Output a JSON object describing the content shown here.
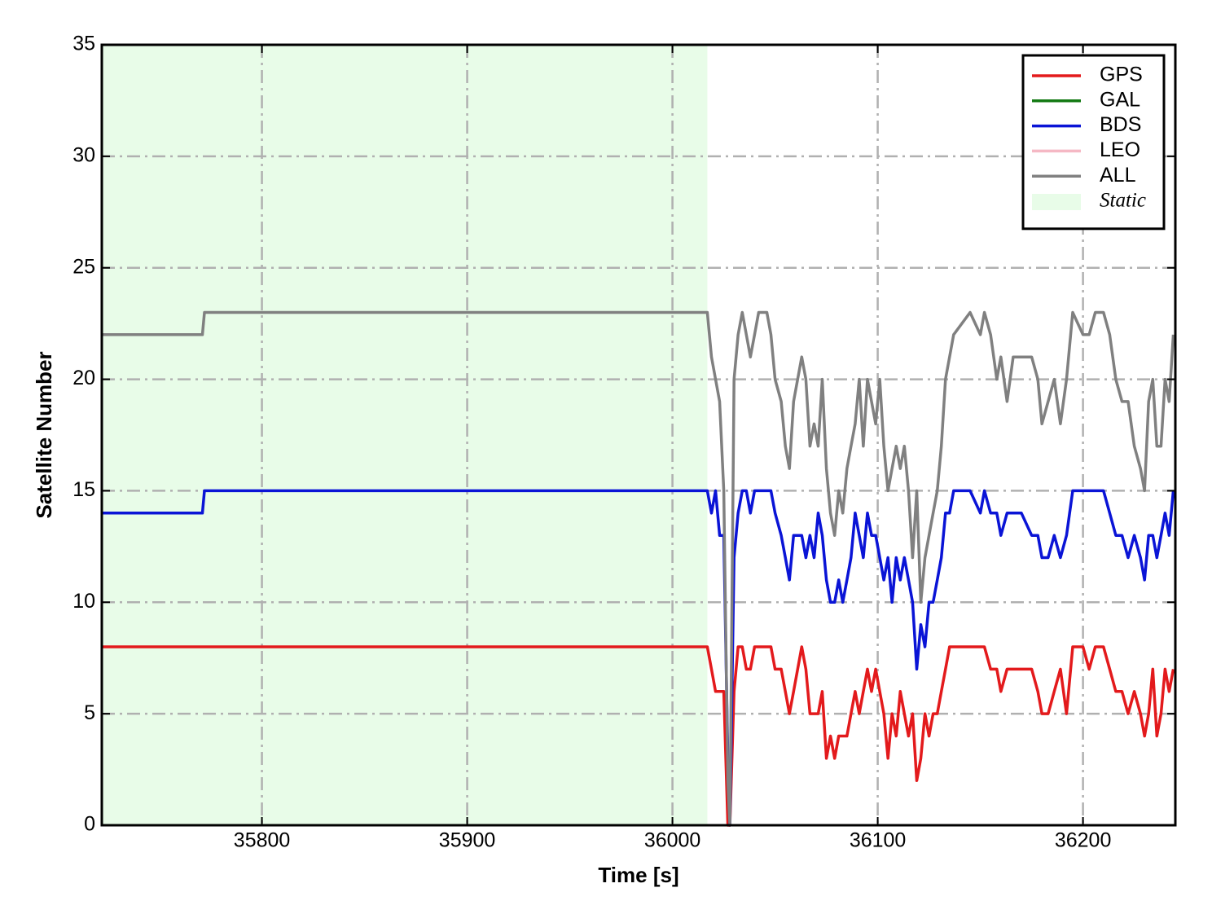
{
  "chart_data": {
    "type": "line",
    "x_label": "Time [s]",
    "y_label": "Satellite Number",
    "xlim": [
      35722,
      36245
    ],
    "ylim": [
      0,
      35
    ],
    "xticks": [
      35800,
      35900,
      36000,
      36100,
      36200
    ],
    "yticks": [
      0,
      5,
      10,
      15,
      20,
      25,
      30,
      35
    ],
    "grid": true,
    "legend": "upper-right",
    "shade": {
      "label": "Static",
      "xlim": [
        35722,
        36017
      ],
      "color": "#e8fce8"
    },
    "x": [
      35722,
      35771,
      35772,
      36016,
      36017,
      36019,
      36021,
      36023,
      36025,
      36027,
      36028,
      36030,
      36032,
      36034,
      36036,
      36038,
      36040,
      36042,
      36046,
      36048,
      36050,
      36053,
      36055,
      36057,
      36059,
      36061,
      36063,
      36065,
      36067,
      36069,
      36071,
      36073,
      36075,
      36077,
      36079,
      36081,
      36083,
      36085,
      36087,
      36089,
      36091,
      36093,
      36095,
      36097,
      36099,
      36101,
      36103,
      36105,
      36107,
      36109,
      36111,
      36113,
      36115,
      36117,
      36119,
      36121,
      36123,
      36125,
      36127,
      36129,
      36131,
      36133,
      36135,
      36137,
      36145,
      36150,
      36152,
      36155,
      36158,
      36160,
      36163,
      36166,
      36170,
      36175,
      36178,
      36180,
      36183,
      36186,
      36189,
      36192,
      36195,
      36200,
      36203,
      36206,
      36210,
      36213,
      36216,
      36219,
      36222,
      36225,
      36228,
      36230,
      36232,
      36234,
      36236,
      36238,
      36240,
      36242,
      36244
    ],
    "series": [
      {
        "name": "GPS",
        "color": "#e31a1c",
        "values": [
          8,
          8,
          8,
          8,
          8,
          7,
          6,
          6,
          6,
          0,
          0,
          6,
          8,
          8,
          7,
          7,
          8,
          8,
          8,
          8,
          7,
          7,
          6,
          5,
          6,
          7,
          8,
          7,
          5,
          5,
          5,
          6,
          3,
          4,
          3,
          4,
          4,
          4,
          5,
          6,
          5,
          6,
          7,
          6,
          7,
          6,
          5,
          3,
          5,
          4,
          6,
          5,
          4,
          5,
          2,
          3,
          5,
          4,
          5,
          5,
          6,
          7,
          8,
          8,
          8,
          8,
          8,
          7,
          7,
          6,
          7,
          7,
          7,
          7,
          6,
          5,
          5,
          6,
          7,
          5,
          8,
          8,
          7,
          8,
          8,
          7,
          6,
          6,
          5,
          6,
          5,
          4,
          5,
          7,
          4,
          5,
          7,
          6,
          7
        ]
      },
      {
        "name": "GAL",
        "color": "#137a13",
        "values": [
          null,
          null,
          null,
          null,
          null,
          null,
          null,
          null,
          null,
          null,
          null,
          null,
          null,
          null,
          null,
          null,
          null,
          null,
          null,
          null,
          null,
          null,
          null,
          null,
          null,
          null,
          null,
          null,
          null,
          null,
          null,
          null,
          null,
          null,
          null,
          null,
          null,
          null,
          null,
          null,
          null,
          null,
          null,
          null,
          null,
          null,
          null,
          null,
          null,
          null,
          null,
          null,
          null,
          null,
          null,
          null,
          null,
          null,
          null,
          null,
          null,
          null,
          null,
          null,
          null,
          null,
          null,
          null,
          null,
          null,
          null,
          null,
          null,
          null,
          null,
          null,
          null,
          null,
          null,
          null,
          null,
          null,
          null,
          null,
          null,
          null,
          null,
          null,
          null,
          null,
          null,
          null,
          null,
          null,
          null,
          null,
          null,
          null,
          null
        ]
      },
      {
        "name": "BDS",
        "color": "#0a14d6",
        "values": [
          14,
          14,
          15,
          15,
          15,
          14,
          15,
          13,
          13,
          3,
          0,
          12,
          14,
          15,
          15,
          14,
          15,
          15,
          15,
          15,
          14,
          13,
          12,
          11,
          13,
          13,
          13,
          12,
          13,
          12,
          14,
          13,
          11,
          10,
          10,
          11,
          10,
          11,
          12,
          14,
          13,
          12,
          14,
          13,
          13,
          12,
          11,
          12,
          10,
          12,
          11,
          12,
          11,
          10,
          7,
          9,
          8,
          10,
          10,
          11,
          12,
          14,
          14,
          15,
          15,
          14,
          15,
          14,
          14,
          13,
          14,
          14,
          14,
          13,
          13,
          12,
          12,
          13,
          12,
          13,
          15,
          15,
          15,
          15,
          15,
          14,
          13,
          13,
          12,
          13,
          12,
          11,
          13,
          13,
          12,
          13,
          14,
          13,
          15
        ]
      },
      {
        "name": "LEO",
        "color": "#f5b8c4",
        "values": [
          null,
          null,
          null,
          null,
          null,
          null,
          null,
          null,
          null,
          null,
          null,
          null,
          null,
          null,
          null,
          null,
          null,
          null,
          null,
          null,
          null,
          null,
          null,
          null,
          null,
          null,
          null,
          null,
          null,
          null,
          null,
          null,
          null,
          null,
          null,
          null,
          null,
          null,
          null,
          null,
          null,
          null,
          null,
          null,
          null,
          null,
          null,
          null,
          null,
          null,
          null,
          null,
          null,
          null,
          null,
          null,
          null,
          null,
          null,
          null,
          null,
          null,
          null,
          null,
          null,
          null,
          null,
          null,
          null,
          null,
          null,
          null,
          null,
          null,
          null,
          null,
          null,
          null,
          null,
          null,
          null,
          null,
          null,
          null,
          null,
          null,
          null,
          null,
          null,
          null,
          null,
          null,
          null,
          null,
          null,
          null,
          null,
          null,
          null
        ]
      },
      {
        "name": "ALL",
        "color": "#808080",
        "values": [
          22,
          22,
          23,
          23,
          23,
          21,
          20,
          19,
          15,
          2,
          0,
          20,
          22,
          23,
          22,
          21,
          22,
          23,
          23,
          22,
          20,
          19,
          17,
          16,
          19,
          20,
          21,
          20,
          17,
          18,
          17,
          20,
          16,
          14,
          13,
          15,
          14,
          16,
          17,
          18,
          20,
          17,
          20,
          19,
          18,
          20,
          17,
          15,
          16,
          17,
          16,
          17,
          15,
          12,
          15,
          10,
          12,
          13,
          14,
          15,
          17,
          20,
          21,
          22,
          23,
          22,
          23,
          22,
          20,
          21,
          19,
          21,
          21,
          21,
          20,
          18,
          19,
          20,
          18,
          20,
          23,
          22,
          22,
          23,
          23,
          22,
          20,
          19,
          19,
          17,
          16,
          15,
          19,
          20,
          17,
          17,
          20,
          19,
          22
        ]
      }
    ]
  }
}
